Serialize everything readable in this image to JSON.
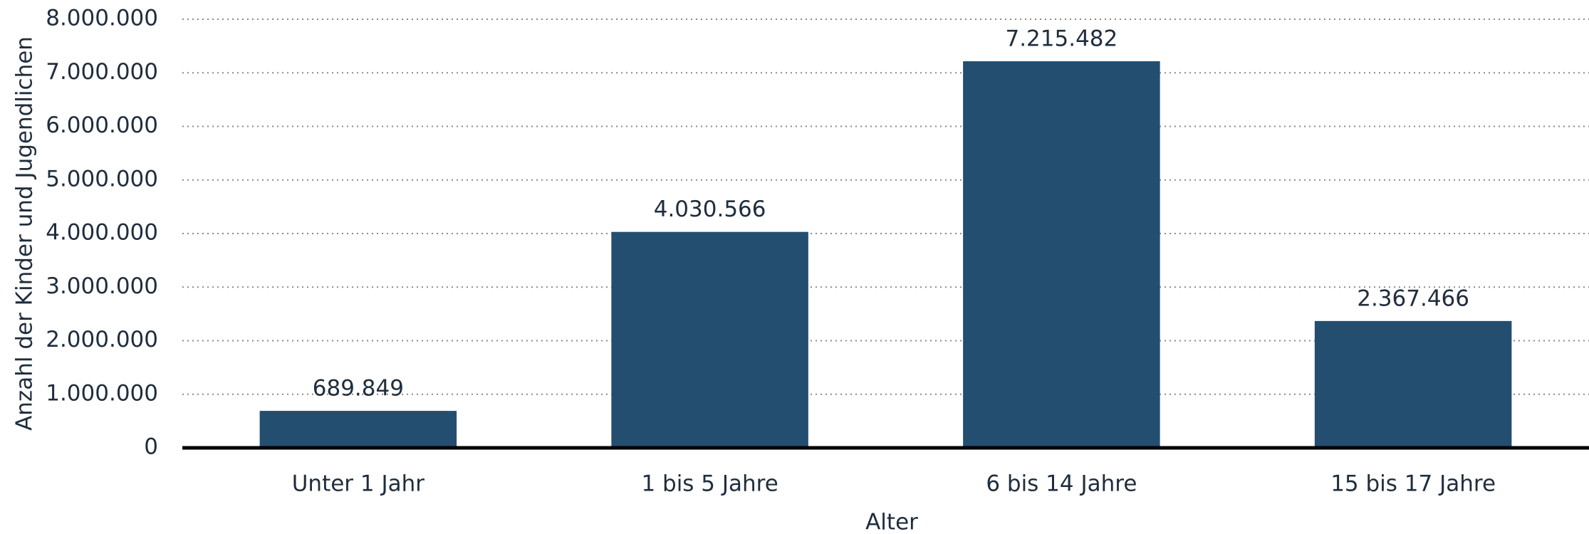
{
  "chart_data": {
    "type": "bar",
    "x_label": "Alter",
    "y_label": "Anzahl der Kinder und Jugendlichen",
    "categories": [
      "Unter 1 Jahr",
      "1 bis 5 Jahre",
      "6 bis 14 Jahre",
      "15 bis 17 Jahre"
    ],
    "values": [
      689849,
      4030566,
      7215482,
      2367466
    ],
    "value_labels": [
      "689.849",
      "4.030.566",
      "7.215.482",
      "2.367.466"
    ],
    "color": "#234e70",
    "ylim": [
      0,
      8000000
    ],
    "yticks": [
      0,
      {
        "value": 1000000,
        "label": "1.000.000"
      },
      {
        "value": 2000000,
        "label": "2.000.000"
      },
      {
        "value": 3000000,
        "label": "3.000.000"
      },
      {
        "value": 4000000,
        "label": "4.000.000"
      },
      {
        "value": 5000000,
        "label": "5.000.000"
      },
      {
        "value": 6000000,
        "label": "6.000.000"
      },
      {
        "value": 7000000,
        "label": "7.000.000"
      },
      {
        "value": 8000000,
        "label": "8.000.000"
      }
    ],
    "grid": true
  }
}
